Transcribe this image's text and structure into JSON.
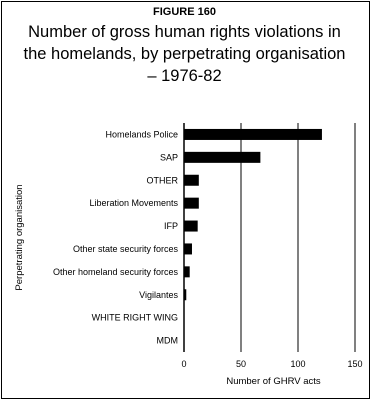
{
  "figure_label": "FIGURE 160",
  "chart_data": {
    "type": "bar",
    "orientation": "horizontal",
    "title": "Number of gross human rights violations in the homelands, by perpetrating organisation – 1976-82",
    "title_lines": [
      "Number of gross human rights violations in",
      "the homelands, by perpetrating organisation",
      "– 1976-82"
    ],
    "xlabel": "Number of GHRV acts",
    "ylabel": "Perpetrating organisation",
    "xlim": [
      0,
      150
    ],
    "xticks": [
      0,
      50,
      100,
      150
    ],
    "grid": "vertical",
    "categories": [
      "Homelands Police",
      "SAP",
      "OTHER",
      "Liberation Movements",
      "IFP",
      "Other state security forces",
      "Other homeland security forces",
      "Vigilantes",
      "WHITE RIGHT WING",
      "MDM"
    ],
    "values": [
      121,
      67,
      13,
      13,
      12,
      7,
      5,
      2,
      0,
      0
    ],
    "bar_color": "#000000"
  }
}
